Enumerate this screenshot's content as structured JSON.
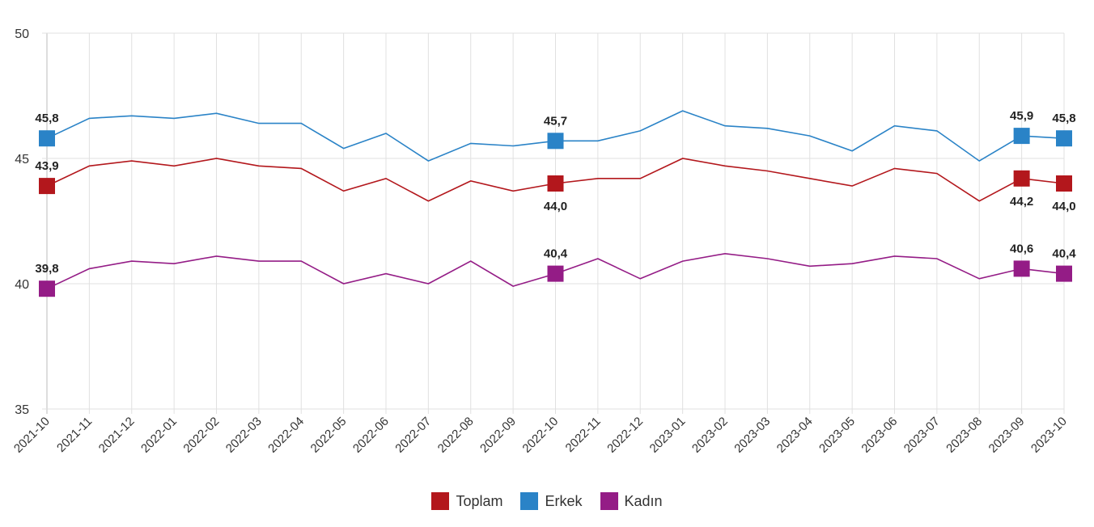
{
  "chart_data": {
    "type": "line",
    "title": "",
    "xlabel": "",
    "ylabel": "",
    "ylim": [
      35,
      50
    ],
    "yticks": [
      35,
      40,
      45,
      50
    ],
    "grid": true,
    "legend_position": "bottom-center",
    "categories": [
      "2021-10",
      "2021-11",
      "2021-12",
      "2022-01",
      "2022-02",
      "2022-03",
      "2022-04",
      "2022-05",
      "2022-06",
      "2022-07",
      "2022-08",
      "2022-09",
      "2022-10",
      "2022-11",
      "2022-12",
      "2023-01",
      "2023-02",
      "2023-03",
      "2023-04",
      "2023-05",
      "2023-06",
      "2023-07",
      "2023-08",
      "2023-09",
      "2023-10"
    ],
    "series": [
      {
        "name": "Toplam",
        "color": "#b3171c",
        "label_position": "below",
        "values": [
          43.9,
          44.7,
          44.9,
          44.7,
          45.0,
          44.7,
          44.6,
          43.7,
          44.2,
          43.3,
          44.1,
          43.7,
          44.0,
          44.2,
          44.2,
          45.0,
          44.7,
          44.5,
          44.2,
          43.9,
          44.6,
          44.4,
          43.3,
          44.2,
          44.0
        ],
        "labeled_points": [
          {
            "index": 0,
            "text": "43,9",
            "position": "above"
          },
          {
            "index": 12,
            "text": "44,0"
          },
          {
            "index": 23,
            "text": "44,2"
          },
          {
            "index": 24,
            "text": "44,0"
          }
        ]
      },
      {
        "name": "Erkek",
        "color": "#2a83c7",
        "label_position": "above",
        "values": [
          45.8,
          46.6,
          46.7,
          46.6,
          46.8,
          46.4,
          46.4,
          45.4,
          46.0,
          44.9,
          45.6,
          45.5,
          45.7,
          45.7,
          46.1,
          46.9,
          46.3,
          46.2,
          45.9,
          45.3,
          46.3,
          46.1,
          44.9,
          45.9,
          45.8
        ],
        "labeled_points": [
          {
            "index": 0,
            "text": "45,8"
          },
          {
            "index": 12,
            "text": "45,7"
          },
          {
            "index": 23,
            "text": "45,9"
          },
          {
            "index": 24,
            "text": "45,8"
          }
        ]
      },
      {
        "name": "Kadın",
        "color": "#941c86",
        "label_position": "above",
        "values": [
          39.8,
          40.6,
          40.9,
          40.8,
          41.1,
          40.9,
          40.9,
          40.0,
          40.4,
          40.0,
          40.9,
          39.9,
          40.4,
          41.0,
          40.2,
          40.9,
          41.2,
          41.0,
          40.7,
          40.8,
          41.1,
          41.0,
          40.2,
          40.6,
          40.4
        ],
        "labeled_points": [
          {
            "index": 0,
            "text": "39,8"
          },
          {
            "index": 12,
            "text": "40,4"
          },
          {
            "index": 23,
            "text": "40,6"
          },
          {
            "index": 24,
            "text": "40,4"
          }
        ]
      }
    ]
  }
}
